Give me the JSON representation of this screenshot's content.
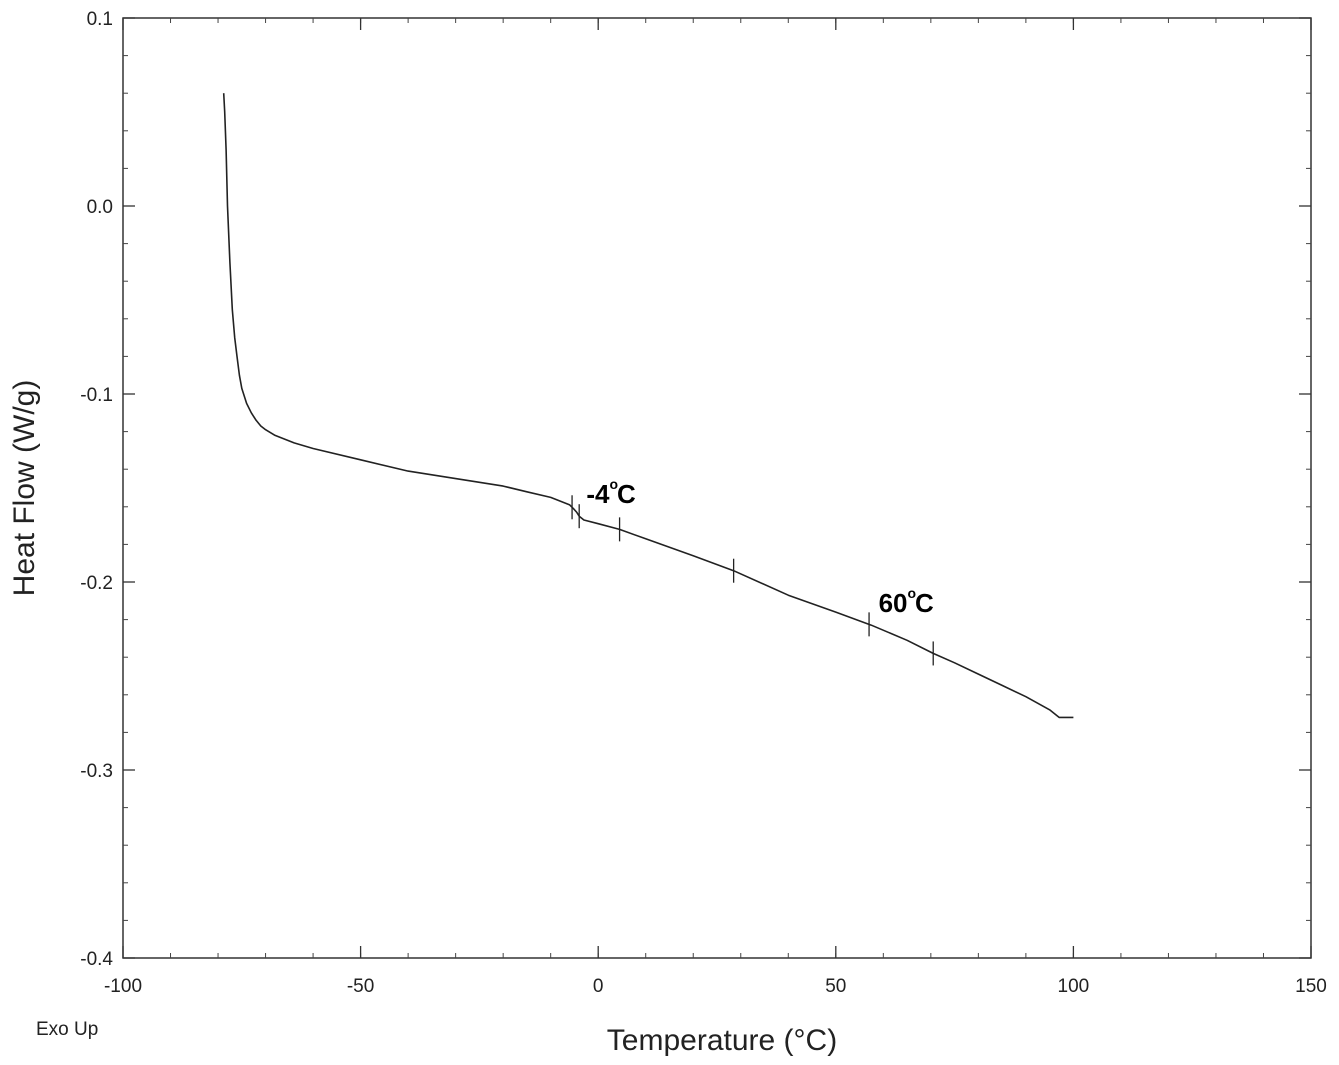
{
  "chart_data": {
    "type": "line",
    "xlabel": "Temperature (°C)",
    "ylabel": "Heat Flow (W/g)",
    "footnote": "Exo Up",
    "xlim": [
      -100,
      150
    ],
    "ylim": [
      -0.4,
      0.1
    ],
    "x_ticks": [
      -100,
      -50,
      0,
      50,
      100,
      150
    ],
    "x_tick_labels": [
      "-100",
      "-50",
      "0",
      "50",
      "100",
      "150"
    ],
    "y_ticks": [
      0.1,
      0.0,
      -0.1,
      -0.2,
      -0.3,
      -0.4
    ],
    "y_tick_labels": [
      "0.1",
      "0.0",
      "-0.1",
      "-0.2",
      "-0.3",
      "-0.4"
    ],
    "grid": false,
    "series": [
      {
        "color": "#222222",
        "x": [
          -78.8,
          -78.6,
          -78.3,
          -78,
          -77.5,
          -77,
          -76.5,
          -76,
          -75.5,
          -75,
          -74,
          -73,
          -72,
          -71,
          -70,
          -68,
          -66,
          -64,
          -60,
          -50,
          -40,
          -30,
          -20,
          -15,
          -10,
          -6,
          -5.2,
          -4.5,
          -4,
          -3,
          0,
          4.5,
          10,
          20,
          28.5,
          40,
          50,
          57.5,
          65,
          70.5,
          75,
          80,
          85,
          90,
          95,
          97,
          100
        ],
        "y": [
          0.06,
          0.05,
          0.03,
          0.0,
          -0.03,
          -0.055,
          -0.07,
          -0.08,
          -0.09,
          -0.097,
          -0.105,
          -0.11,
          -0.114,
          -0.117,
          -0.119,
          -0.122,
          -0.124,
          -0.126,
          -0.129,
          -0.135,
          -0.141,
          -0.145,
          -0.149,
          -0.152,
          -0.155,
          -0.159,
          -0.161,
          -0.163,
          -0.165,
          -0.167,
          -0.169,
          -0.172,
          -0.177,
          -0.186,
          -0.194,
          -0.207,
          -0.216,
          -0.223,
          -0.231,
          -0.238,
          -0.243,
          -0.249,
          -0.255,
          -0.261,
          -0.268,
          -0.272,
          -0.272
        ]
      }
    ],
    "markers_x": [
      -5.5,
      -4,
      4.5,
      28.5,
      57,
      70.5
    ],
    "annotations": [
      {
        "text": "-4",
        "degree": "o",
        "unit": "C",
        "x": -2.5,
        "y": -0.158
      },
      {
        "text": "60",
        "degree": "o",
        "unit": "C",
        "x": 59,
        "y": -0.216
      }
    ]
  }
}
